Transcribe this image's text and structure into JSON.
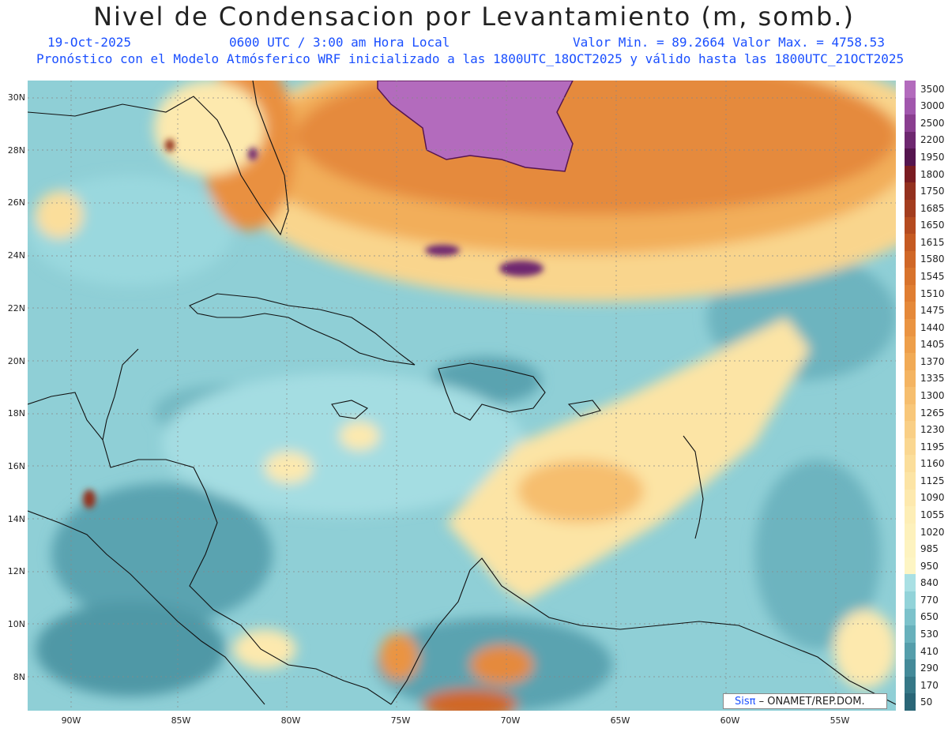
{
  "title": "Nivel de Condensacion por Levantamiento (m, somb.)",
  "date": "19-Oct-2025",
  "time": "0600 UTC / 3:00 am Hora Local",
  "minmax": "Valor Min. = 89.2664  Valor Max. = 4758.53",
  "description": "Pronóstico con el Modelo Atmósferico WRF inicializado a las 1800UTC_18OCT2025 y válido hasta las  1800UTC_21OCT2025",
  "lat_labels": [
    "30N",
    "28N",
    "26N",
    "24N",
    "22N",
    "20N",
    "18N",
    "16N",
    "14N",
    "12N",
    "10N",
    "8N"
  ],
  "lon_labels": [
    "90W",
    "85W",
    "80W",
    "75W",
    "70W",
    "65W",
    "60W",
    "55W"
  ],
  "colorbar": {
    "labels": [
      "3500",
      "3000",
      "2500",
      "2200",
      "1950",
      "1800",
      "1750",
      "1685",
      "1650",
      "1615",
      "1580",
      "1545",
      "1510",
      "1475",
      "1440",
      "1405",
      "1370",
      "1335",
      "1300",
      "1265",
      "1230",
      "1195",
      "1160",
      "1125",
      "1090",
      "1055",
      "1020",
      "985",
      "950",
      "840",
      "770",
      "650",
      "530",
      "410",
      "290",
      "170",
      "50"
    ],
    "colors": [
      "#b36bbd",
      "#a157ad",
      "#8a3e90",
      "#6e2870",
      "#55154f",
      "#7a1c22",
      "#93311f",
      "#a33d1f",
      "#b54b20",
      "#c55a22",
      "#d06727",
      "#d8732c",
      "#e07e32",
      "#e5893a",
      "#ea9442",
      "#ee9f4a",
      "#f1aa55",
      "#f4b462",
      "#f6be6e",
      "#f8c77a",
      "#f9cf86",
      "#fad791",
      "#fbde9b",
      "#fce4a5",
      "#fde9ae",
      "#fdeeb6",
      "#fdf1bc",
      "#fdf3c0",
      "#fdf5c4",
      "#a9e0e4",
      "#92d3d9",
      "#7cc2cb",
      "#68b1bc",
      "#559eab",
      "#448a99",
      "#367887",
      "#2a6677"
    ]
  },
  "credit": {
    "brand": "Sisπ",
    "text": "– ONAMET/REP.DOM."
  }
}
